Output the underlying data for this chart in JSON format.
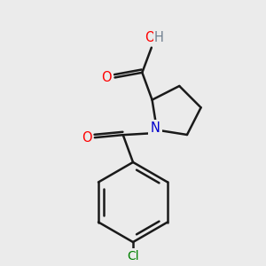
{
  "bg_color": "#ebebeb",
  "atom_colors": {
    "O": "#ff0000",
    "N": "#0000cc",
    "Cl": "#008000",
    "H": "#708090"
  },
  "bond_color": "#1a1a1a",
  "bond_width": 1.8,
  "dbo": 0.08
}
